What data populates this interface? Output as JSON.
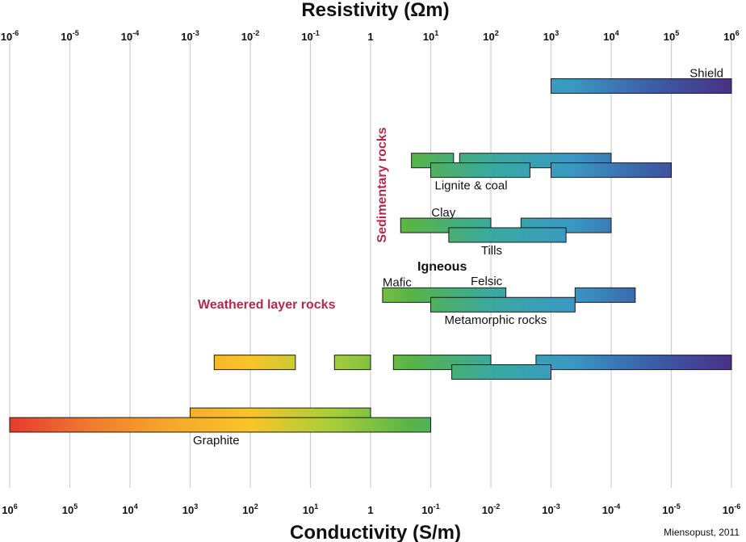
{
  "chart_data": {
    "type": "bar",
    "orientation": "horizontal-range",
    "title": "Resistivity (Ωm)",
    "xlabel": "Conductivity (S/m)",
    "credit": "Miensopust, 2011",
    "scale": "log",
    "top_axis": {
      "ticks": [
        {
          "base": "10",
          "exp": "-6"
        },
        {
          "base": "10",
          "exp": "-5"
        },
        {
          "base": "10",
          "exp": "-4"
        },
        {
          "base": "10",
          "exp": "-3"
        },
        {
          "base": "10",
          "exp": "-2"
        },
        {
          "base": "10",
          "exp": "-1"
        },
        {
          "base": "1",
          "exp": ""
        },
        {
          "base": "10",
          "exp": "1"
        },
        {
          "base": "10",
          "exp": "2"
        },
        {
          "base": "10",
          "exp": "3"
        },
        {
          "base": "10",
          "exp": "4"
        },
        {
          "base": "10",
          "exp": "5"
        },
        {
          "base": "10",
          "exp": "6"
        }
      ]
    },
    "bottom_axis": {
      "ticks": [
        {
          "base": "10",
          "exp": "6"
        },
        {
          "base": "10",
          "exp": "5"
        },
        {
          "base": "10",
          "exp": "4"
        },
        {
          "base": "10",
          "exp": "3"
        },
        {
          "base": "10",
          "exp": "2"
        },
        {
          "base": "10",
          "exp": "1"
        },
        {
          "base": "1",
          "exp": ""
        },
        {
          "base": "10",
          "exp": "-1"
        },
        {
          "base": "10",
          "exp": "-2"
        },
        {
          "base": "10",
          "exp": "-3"
        },
        {
          "base": "10",
          "exp": "-4"
        },
        {
          "base": "10",
          "exp": "-5"
        },
        {
          "base": "10",
          "exp": "-6"
        }
      ]
    },
    "xlim_log10_resistivity": [
      -6,
      6
    ],
    "grid": true,
    "bars": [
      {
        "row": 1.0,
        "from": 3.0,
        "to": 6.0,
        "label": "Shield"
      },
      {
        "row": 2.55,
        "from": 0.68,
        "to": 1.38
      },
      {
        "row": 2.55,
        "from": 1.48,
        "to": 4.0
      },
      {
        "row": 2.75,
        "from": 1.0,
        "to": 2.65,
        "label": "Lignite & coal"
      },
      {
        "row": 2.75,
        "from": 3.0,
        "to": 5.0
      },
      {
        "row": 3.9,
        "from": 0.5,
        "to": 2.0,
        "label": "Clay"
      },
      {
        "row": 3.9,
        "from": 2.5,
        "to": 4.0
      },
      {
        "row": 4.1,
        "from": 1.3,
        "to": 3.25,
        "label": "Tills"
      },
      {
        "row": 5.35,
        "from": 0.2,
        "to": 2.25,
        "label": "Mafic"
      },
      {
        "row": 5.35,
        "from": 3.4,
        "to": 4.4
      },
      {
        "row": 5.55,
        "from": 1.0,
        "to": 3.4,
        "label": "Metamorphic rocks"
      },
      {
        "row": 6.75,
        "from": -2.6,
        "to": -1.25
      },
      {
        "row": 6.75,
        "from": -0.6,
        "to": 0.0
      },
      {
        "row": 6.75,
        "from": 0.38,
        "to": 2.0
      },
      {
        "row": 6.75,
        "from": 2.75,
        "to": 6.0
      },
      {
        "row": 6.95,
        "from": 1.35,
        "to": 3.0
      },
      {
        "row": 7.85,
        "from": -3.0,
        "to": 0.0
      },
      {
        "row": 8.05,
        "from": -6.0,
        "to": 1.0,
        "label": "Graphite"
      }
    ],
    "annotations": [
      {
        "text": "Sedimentary rocks",
        "kind": "group",
        "rotated": true
      },
      {
        "text": "Igneous",
        "kind": "group-bold"
      },
      {
        "text": "Felsic",
        "kind": "label"
      },
      {
        "text": "Weathered layer rocks",
        "kind": "group"
      }
    ],
    "colors": {
      "gradient_stops": [
        "#e63a2e",
        "#f07a2e",
        "#f5a82b",
        "#f8c428",
        "#a8cf3a",
        "#58b447",
        "#3aa9a0",
        "#3a98c4",
        "#3b5ea8",
        "#4a2f86"
      ],
      "group_text": "#b5294a",
      "grid": "#cfcfcf",
      "bar_stroke": "#1a1a1a"
    }
  }
}
